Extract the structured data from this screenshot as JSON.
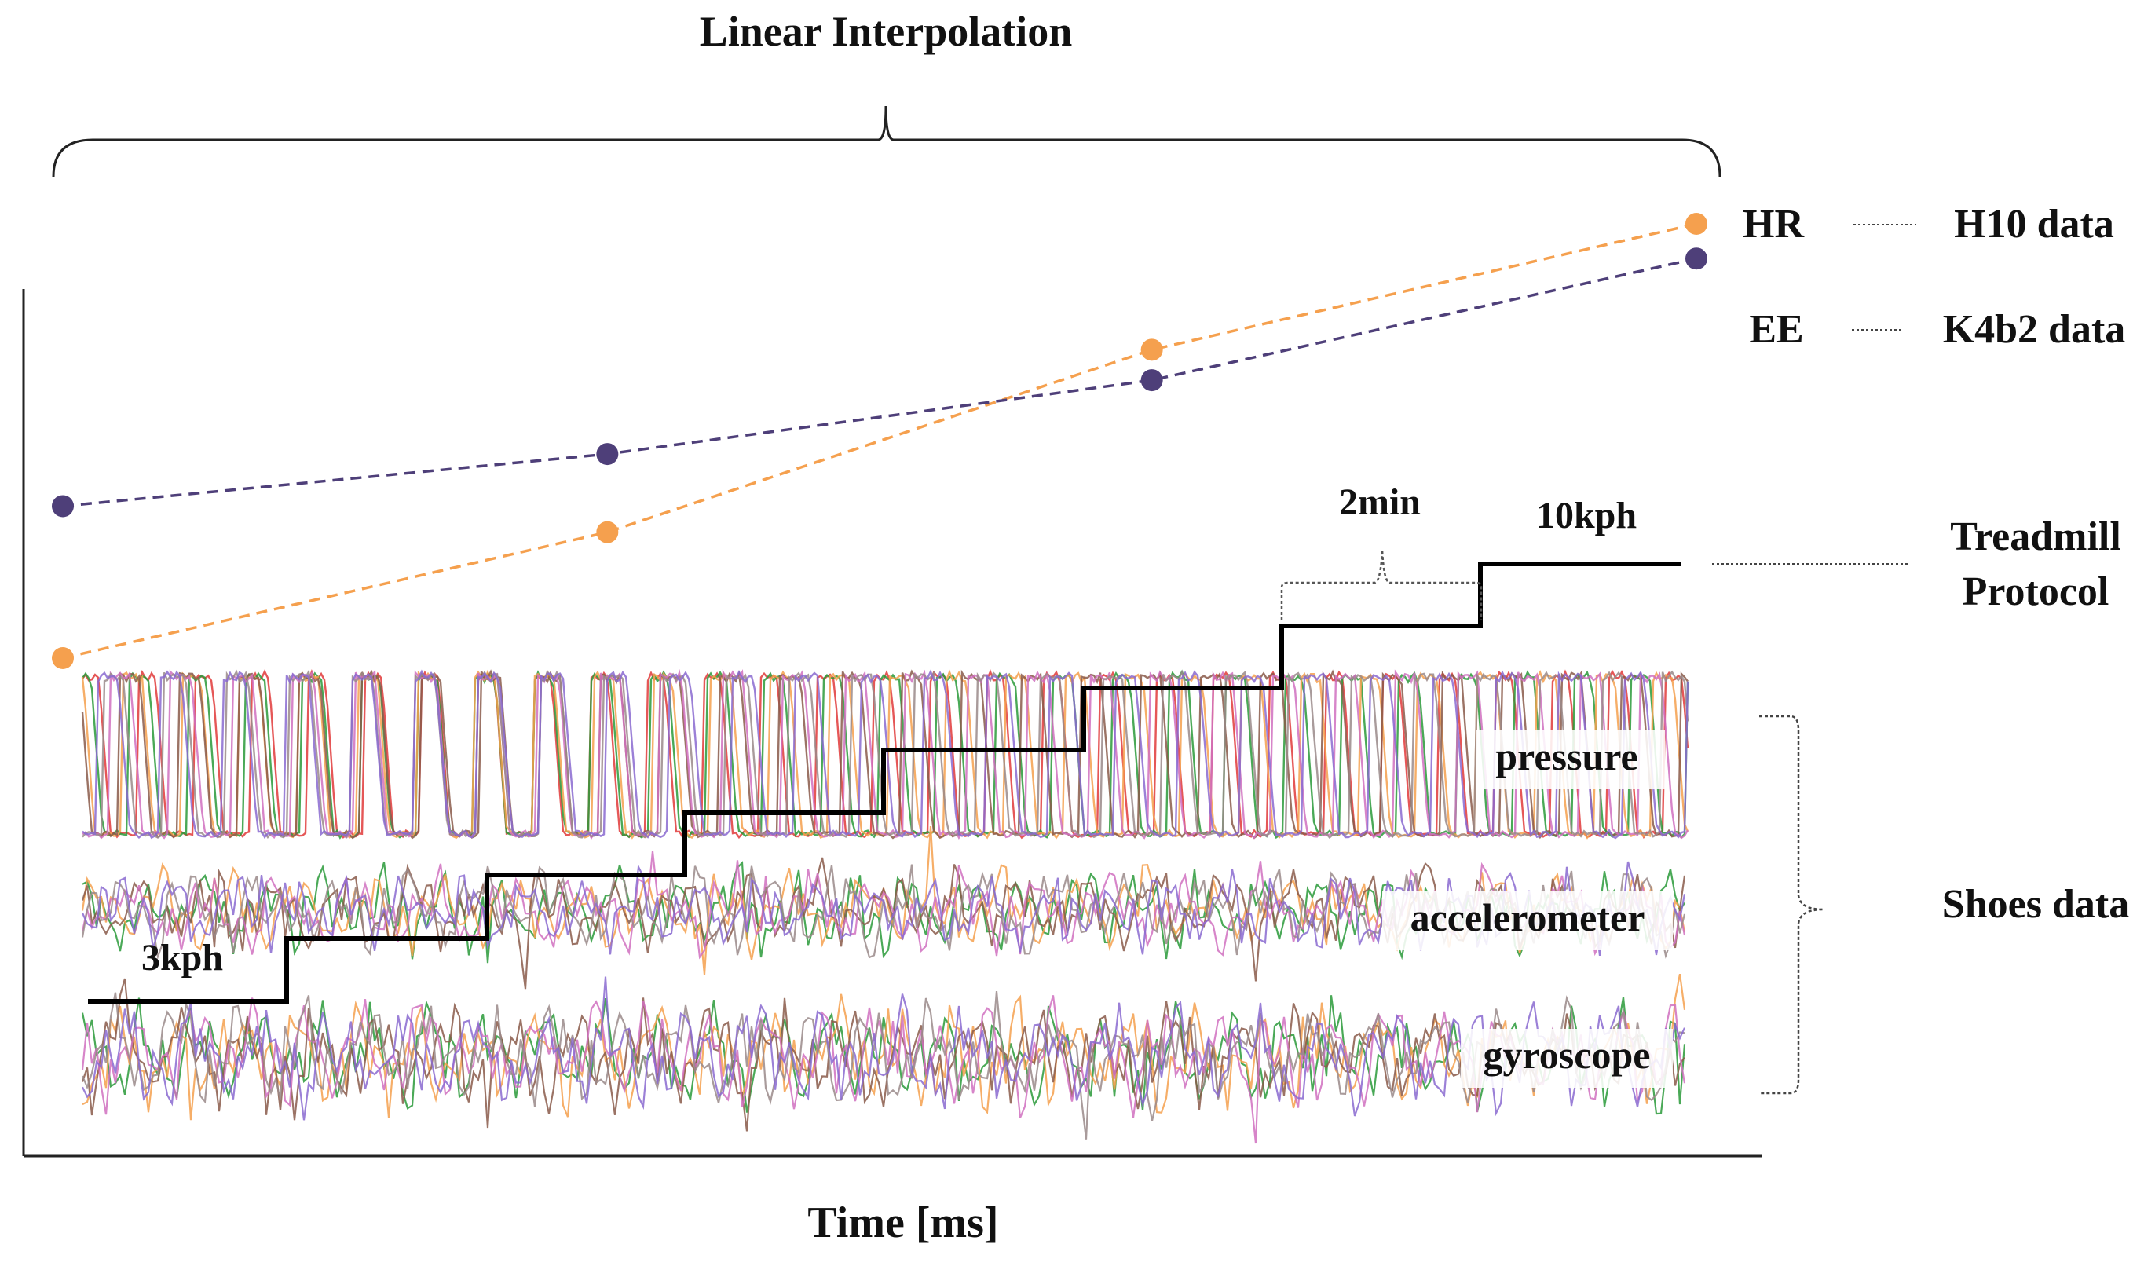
{
  "title": "Linear Interpolation",
  "x_axis_label": "Time [ms]",
  "colors": {
    "hr": "#f5a04e",
    "ee": "#4e3f79",
    "protocol": "#000000",
    "signals": [
      "#e03a3a",
      "#2a9a3a",
      "#f5a04e",
      "#8a5a4a",
      "#d070c0",
      "#9a8a8a",
      "#8a6ad0",
      "#3a8ad0"
    ]
  },
  "legend": {
    "hr": {
      "label": "HR",
      "source": "H10 data"
    },
    "ee": {
      "label": "EE",
      "source": "K4b2 data"
    },
    "protocol": {
      "label": "Treadmill",
      "label2": "Protocol"
    },
    "shoes": {
      "label": "Shoes data"
    }
  },
  "protocol": {
    "start_label": "3kph",
    "end_label": "10kph",
    "step_duration_label": "2min",
    "speeds_kph": [
      3,
      4,
      5,
      6,
      7,
      8,
      9,
      10
    ]
  },
  "signal_labels": {
    "pressure": "pressure",
    "accelerometer": "accelerometer",
    "gyroscope": "gyroscope"
  },
  "chart_data": {
    "type": "line",
    "series": [
      {
        "name": "HR",
        "style": "dashed-with-markers",
        "points": [
          [
            0,
            0
          ],
          [
            1,
            0.29
          ],
          [
            2,
            0.71
          ],
          [
            3,
            1.0
          ]
        ]
      },
      {
        "name": "EE",
        "style": "dashed-with-markers",
        "points": [
          [
            0,
            0.35
          ],
          [
            1,
            0.47
          ],
          [
            2,
            0.64
          ],
          [
            3,
            0.92
          ]
        ]
      }
    ],
    "xlabel": "Time [ms]",
    "ylabel": ""
  }
}
